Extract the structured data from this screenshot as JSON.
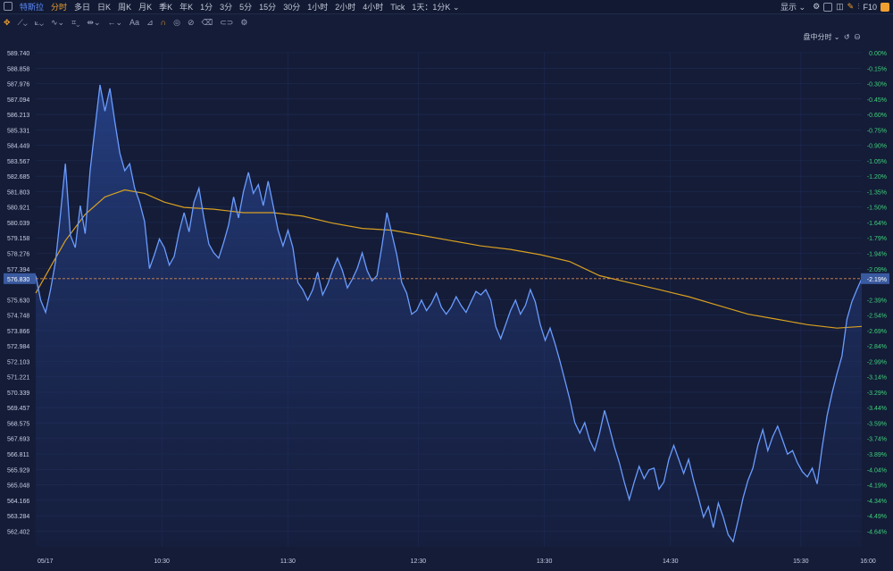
{
  "toolbar": {
    "symbol": "特斯拉",
    "periods": [
      "分时",
      "多日",
      "日K",
      "周K",
      "月K",
      "季K",
      "年K",
      "1分",
      "3分",
      "5分",
      "15分",
      "30分",
      "1小时",
      "2小时",
      "4小时",
      "Tick",
      "1天：1分K"
    ],
    "active_period": "分时",
    "display_label": "显示",
    "f10_label": "F10"
  },
  "drawing_tools": [
    "Aa"
  ],
  "mode_label": "盘中分时",
  "chart_data": {
    "type": "line",
    "title": "",
    "price_ticks": [
      "589.740",
      "588.858",
      "587.976",
      "587.094",
      "586.213",
      "585.331",
      "584.449",
      "583.567",
      "582.685",
      "581.803",
      "580.921",
      "580.039",
      "579.158",
      "578.276",
      "577.394",
      "575.630",
      "574.748",
      "573.866",
      "572.984",
      "572.103",
      "571.221",
      "570.339",
      "569.457",
      "568.575",
      "567.693",
      "566.811",
      "565.929",
      "565.048",
      "564.166",
      "563.284",
      "562.402"
    ],
    "pct_ticks": [
      "0.00%",
      "-0.15%",
      "-0.30%",
      "-0.45%",
      "-0.60%",
      "-0.75%",
      "-0.90%",
      "-1.05%",
      "-1.20%",
      "-1.35%",
      "-1.50%",
      "-1.64%",
      "-1.79%",
      "-1.94%",
      "-2.09%",
      "-2.39%",
      "-2.54%",
      "-2.69%",
      "-2.84%",
      "-2.99%",
      "-3.14%",
      "-3.29%",
      "-3.44%",
      "-3.59%",
      "-3.74%",
      "-3.89%",
      "-4.04%",
      "-4.19%",
      "-4.34%",
      "-4.49%",
      "-4.64%"
    ],
    "current_price_label": "576.830",
    "current_pct_label": "-2.19%",
    "current_price": 576.83,
    "x_labels": [
      "05/17",
      "10:30",
      "11:30",
      "12:30",
      "13:30",
      "14:30",
      "15:30",
      "16:00"
    ],
    "ylim": [
      561.5,
      589.74
    ],
    "price_series": [
      [
        0,
        577.0
      ],
      [
        1,
        575.6
      ],
      [
        2,
        574.9
      ],
      [
        3,
        576.2
      ],
      [
        4,
        577.8
      ],
      [
        5,
        580.5
      ],
      [
        6,
        583.4
      ],
      [
        7,
        579.3
      ],
      [
        8,
        578.6
      ],
      [
        9,
        581.0
      ],
      [
        10,
        579.4
      ],
      [
        11,
        583.0
      ],
      [
        12,
        585.5
      ],
      [
        13,
        587.9
      ],
      [
        14,
        586.4
      ],
      [
        15,
        587.7
      ],
      [
        16,
        585.8
      ],
      [
        17,
        584.0
      ],
      [
        18,
        583.0
      ],
      [
        19,
        583.4
      ],
      [
        20,
        582.0
      ],
      [
        21,
        581.2
      ],
      [
        22,
        580.1
      ],
      [
        23,
        577.4
      ],
      [
        24,
        578.2
      ],
      [
        25,
        579.1
      ],
      [
        26,
        578.6
      ],
      [
        27,
        577.6
      ],
      [
        28,
        578.1
      ],
      [
        29,
        579.5
      ],
      [
        30,
        580.6
      ],
      [
        31,
        579.5
      ],
      [
        32,
        581.2
      ],
      [
        33,
        582.0
      ],
      [
        34,
        580.3
      ],
      [
        35,
        578.8
      ],
      [
        36,
        578.3
      ],
      [
        37,
        578.0
      ],
      [
        38,
        578.9
      ],
      [
        39,
        579.9
      ],
      [
        40,
        581.5
      ],
      [
        41,
        580.3
      ],
      [
        42,
        581.8
      ],
      [
        43,
        582.9
      ],
      [
        44,
        581.7
      ],
      [
        45,
        582.2
      ],
      [
        46,
        581.0
      ],
      [
        47,
        582.4
      ],
      [
        48,
        581.0
      ],
      [
        49,
        579.6
      ],
      [
        50,
        578.7
      ],
      [
        51,
        579.6
      ],
      [
        52,
        578.6
      ],
      [
        53,
        576.6
      ],
      [
        54,
        576.2
      ],
      [
        55,
        575.6
      ],
      [
        56,
        576.2
      ],
      [
        57,
        577.2
      ],
      [
        58,
        575.9
      ],
      [
        59,
        576.5
      ],
      [
        60,
        577.3
      ],
      [
        61,
        578.0
      ],
      [
        62,
        577.3
      ],
      [
        63,
        576.3
      ],
      [
        64,
        576.8
      ],
      [
        65,
        577.4
      ],
      [
        66,
        578.3
      ],
      [
        67,
        577.3
      ],
      [
        68,
        576.7
      ],
      [
        69,
        577.0
      ],
      [
        70,
        578.7
      ],
      [
        71,
        580.6
      ],
      [
        72,
        579.4
      ],
      [
        73,
        578.2
      ],
      [
        74,
        576.6
      ],
      [
        75,
        576.0
      ],
      [
        76,
        574.8
      ],
      [
        77,
        575.0
      ],
      [
        78,
        575.6
      ],
      [
        79,
        575.0
      ],
      [
        80,
        575.4
      ],
      [
        81,
        576.0
      ],
      [
        82,
        575.2
      ],
      [
        83,
        574.8
      ],
      [
        84,
        575.2
      ],
      [
        85,
        575.8
      ],
      [
        86,
        575.3
      ],
      [
        87,
        574.9
      ],
      [
        88,
        575.5
      ],
      [
        89,
        576.1
      ],
      [
        90,
        575.9
      ],
      [
        91,
        576.2
      ],
      [
        92,
        575.6
      ],
      [
        93,
        574.1
      ],
      [
        94,
        573.4
      ],
      [
        95,
        574.2
      ],
      [
        96,
        575.0
      ],
      [
        97,
        575.6
      ],
      [
        98,
        574.8
      ],
      [
        99,
        575.3
      ],
      [
        100,
        576.2
      ],
      [
        101,
        575.5
      ],
      [
        102,
        574.2
      ],
      [
        103,
        573.3
      ],
      [
        104,
        574.0
      ],
      [
        105,
        573.1
      ],
      [
        106,
        572.1
      ],
      [
        107,
        571.0
      ],
      [
        108,
        569.9
      ],
      [
        109,
        568.6
      ],
      [
        110,
        568.0
      ],
      [
        111,
        568.6
      ],
      [
        112,
        567.6
      ],
      [
        113,
        567.0
      ],
      [
        114,
        568.0
      ],
      [
        115,
        569.3
      ],
      [
        116,
        568.3
      ],
      [
        117,
        567.2
      ],
      [
        118,
        566.3
      ],
      [
        119,
        565.2
      ],
      [
        120,
        564.2
      ],
      [
        121,
        565.2
      ],
      [
        122,
        566.1
      ],
      [
        123,
        565.4
      ],
      [
        124,
        565.9
      ],
      [
        125,
        566.0
      ],
      [
        126,
        564.8
      ],
      [
        127,
        565.2
      ],
      [
        128,
        566.5
      ],
      [
        129,
        567.3
      ],
      [
        130,
        566.5
      ],
      [
        131,
        565.7
      ],
      [
        132,
        566.5
      ],
      [
        133,
        565.3
      ],
      [
        134,
        564.3
      ],
      [
        135,
        563.2
      ],
      [
        136,
        563.8
      ],
      [
        137,
        562.6
      ],
      [
        138,
        564.0
      ],
      [
        139,
        563.2
      ],
      [
        140,
        562.2
      ],
      [
        141,
        561.8
      ],
      [
        142,
        563.0
      ],
      [
        143,
        564.3
      ],
      [
        144,
        565.3
      ],
      [
        145,
        566.0
      ],
      [
        146,
        567.3
      ],
      [
        147,
        568.2
      ],
      [
        148,
        567.0
      ],
      [
        149,
        567.8
      ],
      [
        150,
        568.4
      ],
      [
        151,
        567.6
      ],
      [
        152,
        566.8
      ],
      [
        153,
        567.0
      ],
      [
        154,
        566.3
      ],
      [
        155,
        565.8
      ],
      [
        156,
        565.5
      ],
      [
        157,
        566.0
      ],
      [
        158,
        565.1
      ],
      [
        159,
        567.2
      ],
      [
        160,
        569.0
      ],
      [
        161,
        570.3
      ],
      [
        162,
        571.4
      ],
      [
        163,
        572.4
      ],
      [
        164,
        574.5
      ],
      [
        165,
        575.5
      ],
      [
        166,
        576.2
      ],
      [
        167,
        576.83
      ]
    ],
    "avg_series": [
      [
        0,
        576.0
      ],
      [
        3,
        577.5
      ],
      [
        6,
        579.0
      ],
      [
        10,
        580.5
      ],
      [
        14,
        581.5
      ],
      [
        18,
        581.9
      ],
      [
        22,
        581.7
      ],
      [
        26,
        581.2
      ],
      [
        30,
        580.9
      ],
      [
        36,
        580.8
      ],
      [
        42,
        580.6
      ],
      [
        48,
        580.6
      ],
      [
        54,
        580.4
      ],
      [
        60,
        580.0
      ],
      [
        66,
        579.7
      ],
      [
        72,
        579.6
      ],
      [
        78,
        579.3
      ],
      [
        84,
        579.0
      ],
      [
        90,
        578.7
      ],
      [
        96,
        578.5
      ],
      [
        102,
        578.2
      ],
      [
        108,
        577.8
      ],
      [
        114,
        577.0
      ],
      [
        120,
        576.6
      ],
      [
        126,
        576.2
      ],
      [
        132,
        575.8
      ],
      [
        138,
        575.3
      ],
      [
        144,
        574.8
      ],
      [
        150,
        574.5
      ],
      [
        156,
        574.2
      ],
      [
        162,
        574.0
      ],
      [
        167,
        574.1
      ]
    ]
  }
}
